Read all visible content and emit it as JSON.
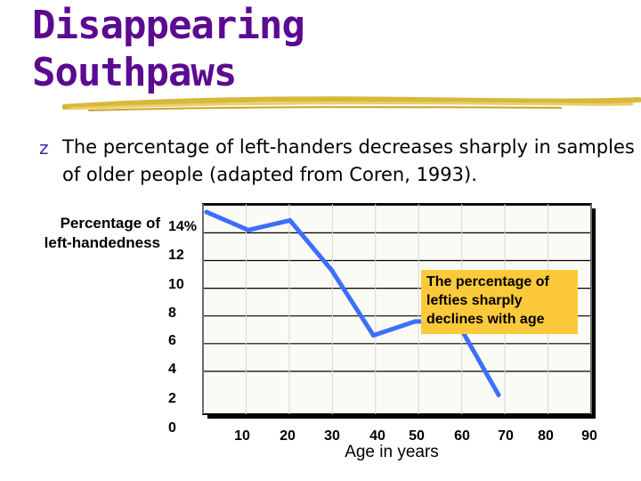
{
  "slide": {
    "title_line1": "Disappearing",
    "title_line2": "Southpaws",
    "bullet_icon": "z-bullet-icon",
    "bullet_text": "The percentage of left-handers decreases sharply in samples of older people (adapted from Coren, 1993).",
    "title_color": "#5b0a91",
    "underline_color": "#d8b83a"
  },
  "chart_data": {
    "type": "line",
    "ylabel_line1": "Percentage of",
    "ylabel_line2": "left-handedness",
    "xlabel": "Age in years",
    "y_ticks": [
      "14%",
      "12",
      "10",
      "8",
      "6",
      "4",
      "2",
      "0"
    ],
    "x_ticks": [
      "10",
      "20",
      "30",
      "40",
      "50",
      "60",
      "70",
      "80",
      "90"
    ],
    "ylim": [
      0,
      14
    ],
    "xlim": [
      0,
      90
    ],
    "grid": true,
    "series": [
      {
        "x": [
          10,
          20,
          30,
          40,
          50,
          60,
          70,
          80
        ],
        "values": [
          13.5,
          12.2,
          12.9,
          9.3,
          4.6,
          5.6,
          5.6,
          0.3
        ],
        "color": "#3d6fff"
      }
    ],
    "annotation": "The percentage of lefties sharply declines with age",
    "annotation_color": "#fbc93a"
  }
}
